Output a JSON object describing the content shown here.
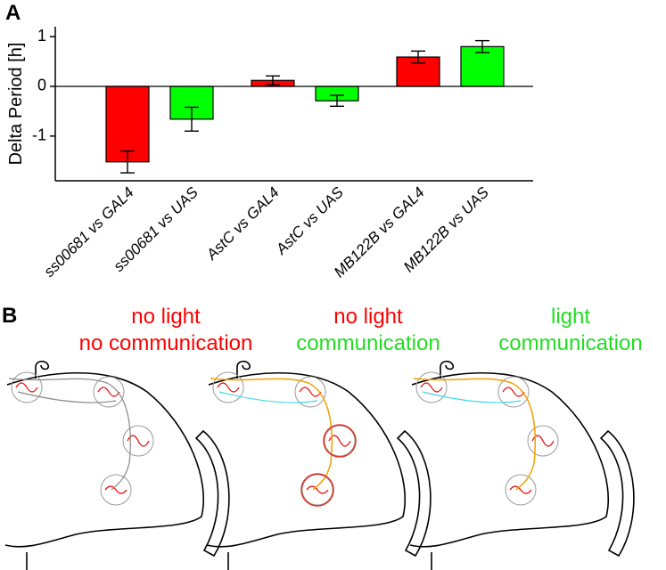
{
  "panel_labels": [
    "A",
    "B"
  ],
  "chart_data": {
    "type": "bar",
    "y_label": "Delta Period [h]",
    "categories": [
      "ss00681 vs GAL4",
      "ss00681 vs UAS",
      "AstC vs GAL4",
      "AstC vs UAS",
      "MB122B vs GAL4",
      "MB122B vs UAS"
    ],
    "values": [
      -1.52,
      -0.66,
      0.12,
      -0.29,
      0.59,
      0.8
    ],
    "errors": [
      0.22,
      0.24,
      0.09,
      0.11,
      0.12,
      0.12
    ],
    "colors": [
      "#ff0000",
      "#00ff00",
      "#ff0000",
      "#00ff00",
      "#ff0000",
      "#00ff00"
    ],
    "ylim": [
      -1.9,
      1.2
    ],
    "yticks": [
      -1,
      0,
      1
    ]
  },
  "conditions": [
    {
      "lines": [
        "no light",
        "no communication"
      ],
      "colors": [
        "#ff0000",
        "#ff0000"
      ]
    },
    {
      "lines": [
        "no light",
        "communication"
      ],
      "colors": [
        "#ff0000",
        "#22dd22"
      ]
    },
    {
      "lines": [
        "light",
        "communication"
      ],
      "colors": [
        "#22dd22",
        "#22dd22"
      ]
    }
  ]
}
